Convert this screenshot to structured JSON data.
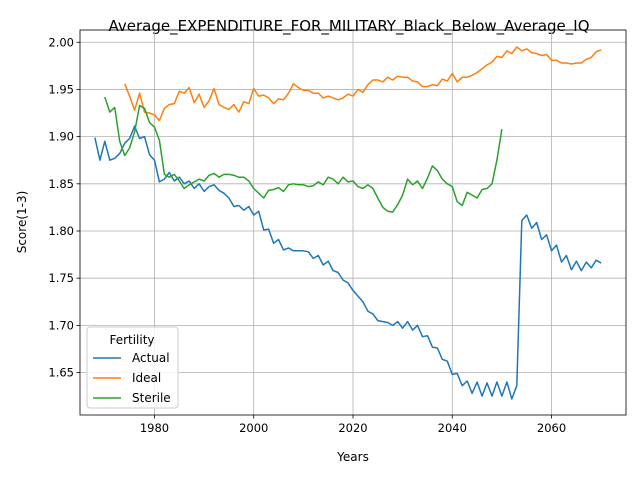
{
  "chart_data": {
    "type": "line",
    "title": "Average_EXPENDITURE_FOR_MILITARY_Black_Below_Average_IQ",
    "xlabel": "Years",
    "ylabel": "Score(1-3)",
    "xlim": [
      1965,
      2075
    ],
    "ylim": [
      1.605,
      2.013
    ],
    "xticks": [
      1980,
      2000,
      2020,
      2040,
      2060
    ],
    "yticks": [
      1.65,
      1.7,
      1.75,
      1.8,
      1.85,
      1.9,
      1.95,
      2.0
    ],
    "grid": true,
    "legend": {
      "title": "Fertility",
      "position": "lower-left"
    },
    "series": [
      {
        "name": "Actual",
        "color": "#1f77b4",
        "points": [
          [
            1968,
            1.899
          ],
          [
            1969,
            1.875
          ],
          [
            1970,
            1.895
          ],
          [
            1971,
            1.875
          ],
          [
            1972,
            1.877
          ],
          [
            1973,
            1.882
          ],
          [
            1974,
            1.893
          ],
          [
            1975,
            1.898
          ],
          [
            1976,
            1.911
          ],
          [
            1977,
            1.898
          ],
          [
            1978,
            1.9
          ],
          [
            1979,
            1.881
          ],
          [
            1980,
            1.875
          ],
          [
            1981,
            1.852
          ],
          [
            1982,
            1.855
          ],
          [
            1983,
            1.862
          ],
          [
            1984,
            1.853
          ],
          [
            1985,
            1.857
          ],
          [
            1986,
            1.85
          ],
          [
            1987,
            1.853
          ],
          [
            1988,
            1.845
          ],
          [
            1989,
            1.85
          ],
          [
            1990,
            1.842
          ],
          [
            1991,
            1.847
          ],
          [
            1992,
            1.849
          ],
          [
            1993,
            1.843
          ],
          [
            1994,
            1.84
          ],
          [
            1995,
            1.835
          ],
          [
            1996,
            1.826
          ],
          [
            1997,
            1.827
          ],
          [
            1998,
            1.822
          ],
          [
            1999,
            1.826
          ],
          [
            2000,
            1.817
          ],
          [
            2001,
            1.821
          ],
          [
            2002,
            1.801
          ],
          [
            2003,
            1.802
          ],
          [
            2004,
            1.787
          ],
          [
            2005,
            1.791
          ],
          [
            2006,
            1.78
          ],
          [
            2007,
            1.782
          ],
          [
            2008,
            1.779
          ],
          [
            2009,
            1.779
          ],
          [
            2010,
            1.779
          ],
          [
            2011,
            1.778
          ],
          [
            2012,
            1.771
          ],
          [
            2013,
            1.774
          ],
          [
            2014,
            1.764
          ],
          [
            2015,
            1.768
          ],
          [
            2016,
            1.758
          ],
          [
            2017,
            1.756
          ],
          [
            2018,
            1.748
          ],
          [
            2019,
            1.745
          ],
          [
            2020,
            1.737
          ],
          [
            2021,
            1.731
          ],
          [
            2022,
            1.725
          ],
          [
            2023,
            1.715
          ],
          [
            2024,
            1.712
          ],
          [
            2025,
            1.705
          ],
          [
            2026,
            1.704
          ],
          [
            2027,
            1.703
          ],
          [
            2028,
            1.7
          ],
          [
            2029,
            1.704
          ],
          [
            2030,
            1.697
          ],
          [
            2031,
            1.704
          ],
          [
            2032,
            1.695
          ],
          [
            2033,
            1.7
          ],
          [
            2034,
            1.688
          ],
          [
            2035,
            1.689
          ],
          [
            2036,
            1.677
          ],
          [
            2037,
            1.676
          ],
          [
            2038,
            1.664
          ],
          [
            2039,
            1.662
          ],
          [
            2040,
            1.648
          ],
          [
            2041,
            1.649
          ],
          [
            2042,
            1.636
          ],
          [
            2043,
            1.641
          ],
          [
            2044,
            1.628
          ],
          [
            2045,
            1.64
          ],
          [
            2046,
            1.625
          ],
          [
            2047,
            1.639
          ],
          [
            2048,
            1.625
          ],
          [
            2049,
            1.64
          ],
          [
            2050,
            1.625
          ],
          [
            2051,
            1.64
          ],
          [
            2052,
            1.622
          ],
          [
            2053,
            1.636
          ],
          [
            2054,
            1.811
          ],
          [
            2055,
            1.817
          ],
          [
            2056,
            1.803
          ],
          [
            2057,
            1.809
          ],
          [
            2058,
            1.791
          ],
          [
            2059,
            1.796
          ],
          [
            2060,
            1.779
          ],
          [
            2061,
            1.785
          ],
          [
            2062,
            1.767
          ],
          [
            2063,
            1.774
          ],
          [
            2064,
            1.759
          ],
          [
            2065,
            1.768
          ],
          [
            2066,
            1.758
          ],
          [
            2067,
            1.767
          ],
          [
            2068,
            1.761
          ],
          [
            2069,
            1.769
          ],
          [
            2070,
            1.766
          ]
        ]
      },
      {
        "name": "Ideal",
        "color": "#ff7f0e",
        "points": [
          [
            1974,
            1.956
          ],
          [
            1975,
            1.943
          ],
          [
            1976,
            1.928
          ],
          [
            1977,
            1.946
          ],
          [
            1978,
            1.926
          ],
          [
            1979,
            1.925
          ],
          [
            1980,
            1.923
          ],
          [
            1981,
            1.917
          ],
          [
            1982,
            1.93
          ],
          [
            1983,
            1.934
          ],
          [
            1984,
            1.935
          ],
          [
            1985,
            1.948
          ],
          [
            1986,
            1.946
          ],
          [
            1987,
            1.952
          ],
          [
            1988,
            1.936
          ],
          [
            1989,
            1.945
          ],
          [
            1990,
            1.931
          ],
          [
            1991,
            1.938
          ],
          [
            1992,
            1.951
          ],
          [
            1993,
            1.934
          ],
          [
            1994,
            1.931
          ],
          [
            1995,
            1.929
          ],
          [
            1996,
            1.934
          ],
          [
            1997,
            1.926
          ],
          [
            1998,
            1.937
          ],
          [
            1999,
            1.935
          ],
          [
            2000,
            1.951
          ],
          [
            2001,
            1.943
          ],
          [
            2002,
            1.944
          ],
          [
            2003,
            1.941
          ],
          [
            2004,
            1.935
          ],
          [
            2005,
            1.94
          ],
          [
            2006,
            1.939
          ],
          [
            2007,
            1.946
          ],
          [
            2008,
            1.956
          ],
          [
            2009,
            1.952
          ],
          [
            2010,
            1.949
          ],
          [
            2011,
            1.949
          ],
          [
            2012,
            1.946
          ],
          [
            2013,
            1.946
          ],
          [
            2014,
            1.941
          ],
          [
            2015,
            1.943
          ],
          [
            2016,
            1.941
          ],
          [
            2017,
            1.939
          ],
          [
            2018,
            1.941
          ],
          [
            2019,
            1.945
          ],
          [
            2020,
            1.943
          ],
          [
            2021,
            1.95
          ],
          [
            2022,
            1.947
          ],
          [
            2023,
            1.955
          ],
          [
            2024,
            1.96
          ],
          [
            2025,
            1.96
          ],
          [
            2026,
            1.958
          ],
          [
            2027,
            1.963
          ],
          [
            2028,
            1.96
          ],
          [
            2029,
            1.964
          ],
          [
            2030,
            1.963
          ],
          [
            2031,
            1.963
          ],
          [
            2032,
            1.959
          ],
          [
            2033,
            1.958
          ],
          [
            2034,
            1.953
          ],
          [
            2035,
            1.953
          ],
          [
            2036,
            1.955
          ],
          [
            2037,
            1.954
          ],
          [
            2038,
            1.961
          ],
          [
            2039,
            1.959
          ],
          [
            2040,
            1.967
          ],
          [
            2041,
            1.958
          ],
          [
            2042,
            1.963
          ],
          [
            2043,
            1.963
          ],
          [
            2044,
            1.965
          ],
          [
            2045,
            1.968
          ],
          [
            2046,
            1.972
          ],
          [
            2047,
            1.976
          ],
          [
            2048,
            1.979
          ],
          [
            2049,
            1.985
          ],
          [
            2050,
            1.984
          ],
          [
            2051,
            1.991
          ],
          [
            2052,
            1.988
          ],
          [
            2053,
            1.995
          ],
          [
            2054,
            1.991
          ],
          [
            2055,
            1.993
          ],
          [
            2056,
            1.989
          ],
          [
            2057,
            1.988
          ],
          [
            2058,
            1.986
          ],
          [
            2059,
            1.987
          ],
          [
            2060,
            1.981
          ],
          [
            2061,
            1.981
          ],
          [
            2062,
            1.978
          ],
          [
            2063,
            1.978
          ],
          [
            2064,
            1.977
          ],
          [
            2065,
            1.978
          ],
          [
            2066,
            1.978
          ],
          [
            2067,
            1.982
          ],
          [
            2068,
            1.984
          ],
          [
            2069,
            1.99
          ],
          [
            2070,
            1.992
          ]
        ]
      },
      {
        "name": "Sterile",
        "color": "#2ca02c",
        "points": [
          [
            1970,
            1.942
          ],
          [
            1971,
            1.926
          ],
          [
            1972,
            1.931
          ],
          [
            1973,
            1.895
          ],
          [
            1974,
            1.88
          ],
          [
            1975,
            1.888
          ],
          [
            1976,
            1.905
          ],
          [
            1977,
            1.933
          ],
          [
            1978,
            1.93
          ],
          [
            1979,
            1.915
          ],
          [
            1980,
            1.91
          ],
          [
            1981,
            1.896
          ],
          [
            1982,
            1.86
          ],
          [
            1983,
            1.857
          ],
          [
            1984,
            1.86
          ],
          [
            1985,
            1.853
          ],
          [
            1986,
            1.845
          ],
          [
            1987,
            1.849
          ],
          [
            1988,
            1.852
          ],
          [
            1989,
            1.855
          ],
          [
            1990,
            1.853
          ],
          [
            1991,
            1.859
          ],
          [
            1992,
            1.861
          ],
          [
            1993,
            1.857
          ],
          [
            1994,
            1.86
          ],
          [
            1995,
            1.86
          ],
          [
            1996,
            1.859
          ],
          [
            1997,
            1.857
          ],
          [
            1998,
            1.857
          ],
          [
            1999,
            1.853
          ],
          [
            2000,
            1.845
          ],
          [
            2001,
            1.84
          ],
          [
            2002,
            1.835
          ],
          [
            2003,
            1.843
          ],
          [
            2004,
            1.844
          ],
          [
            2005,
            1.846
          ],
          [
            2006,
            1.842
          ],
          [
            2007,
            1.849
          ],
          [
            2008,
            1.85
          ],
          [
            2009,
            1.849
          ],
          [
            2010,
            1.849
          ],
          [
            2011,
            1.847
          ],
          [
            2012,
            1.848
          ],
          [
            2013,
            1.852
          ],
          [
            2014,
            1.849
          ],
          [
            2015,
            1.857
          ],
          [
            2016,
            1.855
          ],
          [
            2017,
            1.85
          ],
          [
            2018,
            1.857
          ],
          [
            2019,
            1.852
          ],
          [
            2020,
            1.853
          ],
          [
            2021,
            1.847
          ],
          [
            2022,
            1.845
          ],
          [
            2023,
            1.849
          ],
          [
            2024,
            1.845
          ],
          [
            2025,
            1.835
          ],
          [
            2026,
            1.825
          ],
          [
            2027,
            1.821
          ],
          [
            2028,
            1.82
          ],
          [
            2029,
            1.828
          ],
          [
            2030,
            1.838
          ],
          [
            2031,
            1.855
          ],
          [
            2032,
            1.849
          ],
          [
            2033,
            1.853
          ],
          [
            2034,
            1.845
          ],
          [
            2035,
            1.856
          ],
          [
            2036,
            1.869
          ],
          [
            2037,
            1.864
          ],
          [
            2038,
            1.855
          ],
          [
            2039,
            1.85
          ],
          [
            2040,
            1.847
          ],
          [
            2041,
            1.831
          ],
          [
            2042,
            1.827
          ],
          [
            2043,
            1.841
          ],
          [
            2044,
            1.838
          ],
          [
            2045,
            1.835
          ],
          [
            2046,
            1.844
          ],
          [
            2047,
            1.845
          ],
          [
            2048,
            1.85
          ],
          [
            2049,
            1.875
          ],
          [
            2050,
            1.908
          ]
        ]
      }
    ]
  }
}
